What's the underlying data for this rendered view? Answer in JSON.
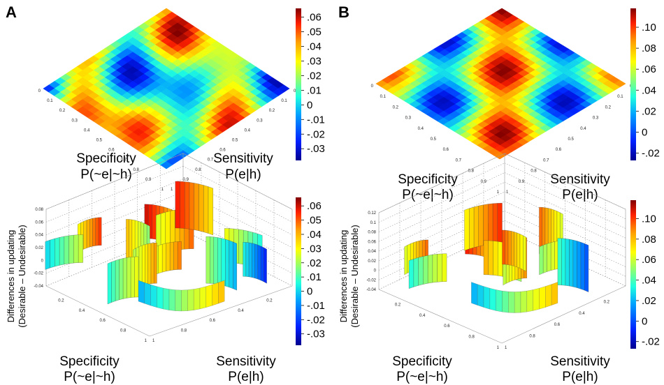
{
  "panels": {
    "A": "A",
    "B": "B"
  },
  "axis_titles": {
    "specificity": "Specificity",
    "specificity_sub": "P(~e|~h)",
    "sensitivity": "Sensitivity",
    "sensitivity_sub": "P(e|h)",
    "z_line1": "Differences in updating",
    "z_line2": "(Desirable – Undesirable)"
  },
  "colorscale": [
    "#00008f",
    "#0020ff",
    "#00a0ff",
    "#20ffdf",
    "#9fff60",
    "#ffff00",
    "#ff9f00",
    "#ff2000",
    "#800000"
  ],
  "chart_data": [
    {
      "id": "A-top",
      "type": "heatmap",
      "view": "top-down surface",
      "x_ticks": [
        "0",
        "0.1",
        "0.2",
        "0.3",
        "0.4",
        "0.5",
        "0.6",
        "0.7",
        "0.8",
        "0.9",
        "1"
      ],
      "y_ticks": [
        "0",
        "0.1",
        "0.2",
        "0.3",
        "0.4",
        "0.5",
        "0.6",
        "0.7",
        "0.8",
        "0.9",
        "1"
      ],
      "colorbar": {
        "ticks": [
          ".06",
          ".05",
          ".04",
          ".03",
          ".02",
          ".01",
          "0",
          "-.01",
          "-.02",
          "-.03"
        ],
        "range": [
          -0.038,
          0.066
        ]
      }
    },
    {
      "id": "B-top",
      "type": "heatmap",
      "view": "top-down surface",
      "x_ticks": [
        "0",
        "0.1",
        "0.2",
        "0.3",
        "0.4",
        "0.5",
        "0.6",
        "0.7",
        "0.8",
        "0.9",
        "1"
      ],
      "y_ticks": [
        "0",
        "0.1",
        "0.2",
        "0.3",
        "0.4",
        "0.5",
        "0.6",
        "0.7",
        "0.8",
        "0.9",
        "1"
      ],
      "colorbar": {
        "ticks": [
          ".10",
          ".08",
          ".06",
          ".04",
          ".02",
          "0",
          "-.02"
        ],
        "range": [
          -0.027,
          0.118
        ]
      }
    },
    {
      "id": "A-3d",
      "type": "area",
      "view": "3D surface",
      "x_ticks": [
        "0.2",
        "0.4",
        "0.6",
        "0.8",
        "1"
      ],
      "y_ticks": [
        "0.2",
        "0.4",
        "0.6",
        "0.8",
        "1"
      ],
      "z_ticks": [
        "0.08",
        "0.06",
        "0.04",
        "0.02",
        "0",
        "-0.02",
        "-0.04"
      ],
      "zlim": [
        -0.04,
        0.08
      ],
      "colorbar": {
        "ticks": [
          ".06",
          ".05",
          ".04",
          ".03",
          ".02",
          ".01",
          "0",
          "-.01",
          "-.02",
          "-.03"
        ],
        "range": [
          -0.038,
          0.066
        ]
      }
    },
    {
      "id": "B-3d",
      "type": "area",
      "view": "3D surface",
      "x_ticks": [
        "0.2",
        "0.4",
        "0.6",
        "0.8",
        "1"
      ],
      "y_ticks": [
        "0.2",
        "0.4",
        "0.6",
        "0.8",
        "1"
      ],
      "z_ticks": [
        "0.12",
        "0.1",
        "0.08",
        "0.06",
        "0.04",
        "0.02",
        "0",
        "-0.02",
        "-0.04"
      ],
      "zlim": [
        -0.04,
        0.12
      ],
      "colorbar": {
        "ticks": [
          ".10",
          ".08",
          ".06",
          ".04",
          ".02",
          "0",
          "-.02"
        ],
        "range": [
          -0.027,
          0.118
        ]
      }
    }
  ]
}
